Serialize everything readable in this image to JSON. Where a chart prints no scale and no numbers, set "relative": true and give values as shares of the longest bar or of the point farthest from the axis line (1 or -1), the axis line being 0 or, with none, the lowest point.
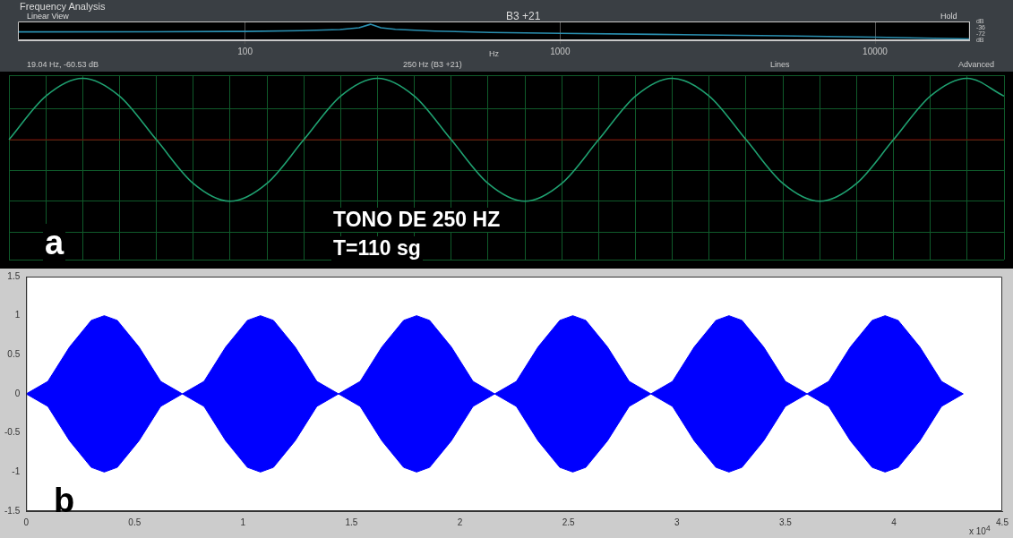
{
  "chart_data": [
    {
      "type": "line",
      "title": "Frequency Analysis",
      "subtitle": "B3 +21",
      "xlabel": "Hz",
      "annotations": [
        "Linear View",
        "19.04 Hz, -60.53 dB",
        "250 Hz (B3 +21)",
        "Hold",
        "Lines",
        "Advanced"
      ],
      "x": [
        19,
        50,
        100,
        150,
        200,
        230,
        250,
        270,
        300,
        400,
        600,
        1000,
        2000,
        5000,
        10000,
        20000
      ],
      "series": [
        {
          "color": "#2a8fb0",
          "values": [
            -60,
            -59,
            -57,
            -53,
            -46,
            -36,
            -16,
            -36,
            -45,
            -55,
            -63,
            -68,
            -74,
            -82,
            -90,
            -100
          ]
        }
      ],
      "log": "x",
      "xlim": [
        19,
        20000
      ],
      "xticks": [
        100,
        1000,
        10000
      ],
      "ylim": [
        -108,
        0
      ],
      "yticks": [
        {
          "value": 0,
          "label": "dB"
        },
        -36,
        -72,
        {
          "value": -108,
          "label": "dB"
        }
      ],
      "grid": "x",
      "marker": "none"
    },
    {
      "type": "line",
      "relative": true,
      "annotations": [
        "TONO DE 250 HZ",
        "T=110 sg",
        "a"
      ],
      "categories": [
        null,
        null,
        null,
        null,
        null,
        null,
        null,
        null,
        null,
        null,
        null,
        null,
        null,
        null,
        null,
        null,
        null,
        null,
        null,
        null,
        null,
        null,
        null,
        null,
        null,
        null,
        null,
        null
      ],
      "series": [
        {
          "color": "#1fa070",
          "values": [
            0,
            0.71,
            1,
            0.71,
            0,
            -0.71,
            -1,
            -0.71,
            0,
            0.71,
            1,
            0.71,
            0,
            -0.71,
            -1,
            -0.71,
            0,
            0.71,
            1,
            0.71,
            0,
            -0.71,
            -1,
            -0.71,
            0,
            0.71,
            1,
            0.71
          ]
        }
      ],
      "grid": true,
      "tick_labels": false,
      "marker": "none",
      "ref_lines": [
        {
          "axis": "y",
          "value": 0,
          "color": "#8a0000"
        }
      ]
    },
    {
      "type": "area",
      "annotations": [
        "x 10$^{4}$",
        "b"
      ],
      "x": [
        0,
        0.1,
        0.2,
        0.3,
        0.36,
        0.42,
        0.52,
        0.62,
        0.72,
        0.82,
        0.92,
        1.02,
        1.08,
        1.14,
        1.24,
        1.34,
        1.44,
        1.54,
        1.64,
        1.74,
        1.8,
        1.86,
        1.96,
        2.06,
        2.16,
        2.26,
        2.36,
        2.46,
        2.52,
        2.58,
        2.68,
        2.78,
        2.88,
        2.98,
        3.08,
        3.18,
        3.24,
        3.3,
        3.4,
        3.5,
        3.6,
        3.7,
        3.8,
        3.9,
        3.96,
        4.02,
        4.12,
        4.22,
        4.32
      ],
      "series": [
        {
          "color": "#0000ff",
          "values": [
            0,
            0.16,
            0.6,
            0.94,
            1,
            0.94,
            0.6,
            0.16,
            0,
            0.16,
            0.6,
            0.94,
            1,
            0.94,
            0.6,
            0.16,
            0,
            0.16,
            0.6,
            0.94,
            1,
            0.94,
            0.6,
            0.16,
            0,
            0.16,
            0.6,
            0.94,
            1,
            0.94,
            0.6,
            0.16,
            0,
            0.16,
            0.6,
            0.94,
            1,
            0.94,
            0.6,
            0.16,
            0,
            0.16,
            0.6,
            0.94,
            1,
            0.94,
            0.6,
            0.16,
            0
          ]
        },
        {
          "color": "#0000ff",
          "values": [
            0,
            -0.16,
            -0.6,
            -0.94,
            -1,
            -0.94,
            -0.6,
            -0.16,
            0,
            -0.16,
            -0.6,
            -0.94,
            -1,
            -0.94,
            -0.6,
            -0.16,
            0,
            -0.16,
            -0.6,
            -0.94,
            -1,
            -0.94,
            -0.6,
            -0.16,
            0,
            -0.16,
            -0.6,
            -0.94,
            -1,
            -0.94,
            -0.6,
            -0.16,
            0,
            -0.16,
            -0.6,
            -0.94,
            -1,
            -0.94,
            -0.6,
            -0.16,
            0,
            -0.16,
            -0.6,
            -0.94,
            -1,
            -0.94,
            -0.6,
            -0.16,
            0
          ]
        }
      ],
      "xlim": [
        0,
        4.5
      ],
      "xticks": [
        0,
        0.5,
        1,
        1.5,
        2,
        2.5,
        3,
        3.5,
        4,
        4.5
      ],
      "ylim": [
        -1.5,
        1.5
      ],
      "yticks": [
        -1.5,
        -1,
        -0.5,
        0,
        0.5,
        1,
        1.5
      ],
      "grid": false,
      "marker": "none"
    }
  ]
}
